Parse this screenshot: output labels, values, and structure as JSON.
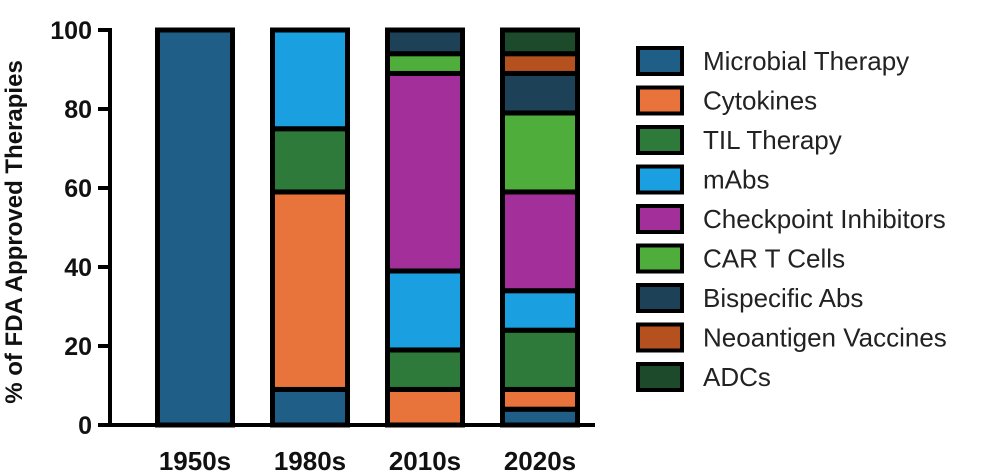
{
  "chart_data": {
    "type": "bar",
    "stacked": true,
    "categories": [
      "1950s",
      "1980s",
      "2010s",
      "2020s"
    ],
    "ylabel": "% of FDA Approved Therapies",
    "ylim": [
      0,
      100
    ],
    "yticks": [
      0,
      20,
      40,
      60,
      80,
      100
    ],
    "legend_position": "right",
    "series": [
      {
        "name": "Microbial Therapy",
        "color": "#1f5f87",
        "values": [
          100,
          9,
          0,
          4
        ]
      },
      {
        "name": "Cytokines",
        "color": "#e8743b",
        "values": [
          0,
          50,
          9,
          5
        ]
      },
      {
        "name": "TIL Therapy",
        "color": "#2d7a3b",
        "values": [
          0,
          16,
          10,
          15
        ]
      },
      {
        "name": "mAbs",
        "color": "#1a9fe0",
        "values": [
          0,
          25,
          20,
          10
        ]
      },
      {
        "name": "Checkpoint Inhibitors",
        "color": "#a3309a",
        "values": [
          0,
          0,
          50,
          25
        ]
      },
      {
        "name": "CAR T Cells",
        "color": "#4fae3b",
        "values": [
          0,
          0,
          5,
          20
        ]
      },
      {
        "name": "Bispecific Abs",
        "color": "#1d4258",
        "values": [
          0,
          0,
          6,
          10
        ]
      },
      {
        "name": "Neoantigen Vaccines",
        "color": "#b5501f",
        "values": [
          0,
          0,
          0,
          5
        ]
      },
      {
        "name": "ADCs",
        "color": "#1d4a2a",
        "values": [
          0,
          0,
          0,
          6
        ]
      }
    ]
  }
}
